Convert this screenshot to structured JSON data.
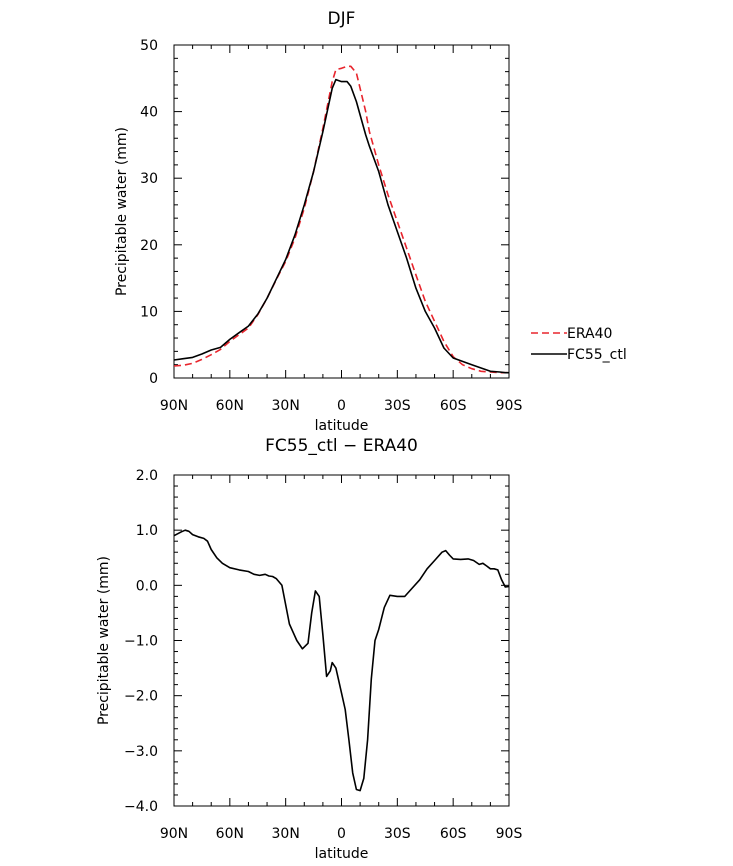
{
  "chart_data": [
    {
      "type": "line",
      "title": "DJF",
      "xlabel": "latitude",
      "ylabel": "Precipitable water (mm)",
      "xlim": [
        -90,
        90
      ],
      "ylim": [
        0,
        50
      ],
      "x_ticks": [
        -90,
        -60,
        -30,
        0,
        30,
        60,
        90
      ],
      "x_tick_labels": [
        "90N",
        "60N",
        "30N",
        "0",
        "30S",
        "60S",
        "90S"
      ],
      "y_ticks": [
        0,
        10,
        20,
        30,
        40,
        50
      ],
      "y_tick_labels": [
        "0",
        "10",
        "20",
        "30",
        "40",
        "50"
      ],
      "legend_position": "right",
      "series": [
        {
          "name": "ERA40",
          "color": "#e8252d",
          "dash": "dashed",
          "x": [
            -90,
            -85,
            -80,
            -75,
            -70,
            -65,
            -60,
            -55,
            -50,
            -45,
            -40,
            -35,
            -30,
            -25,
            -20,
            -15,
            -10,
            -5,
            -3,
            0,
            3,
            5,
            8,
            10,
            13,
            15,
            20,
            25,
            30,
            35,
            40,
            45,
            50,
            55,
            60,
            65,
            70,
            75,
            80,
            85,
            88,
            90
          ],
          "y": [
            1.8,
            1.9,
            2.2,
            2.8,
            3.5,
            4.3,
            5.5,
            6.5,
            7.5,
            9.5,
            12.0,
            14.8,
            17.5,
            21.0,
            25.5,
            31.0,
            37.5,
            44.5,
            46.3,
            46.5,
            46.8,
            46.8,
            45.8,
            43.5,
            40.0,
            37.0,
            32.0,
            27.5,
            23.5,
            19.5,
            15.5,
            11.5,
            8.5,
            5.5,
            3.2,
            2.0,
            1.4,
            1.0,
            0.9,
            0.8,
            0.8,
            0.8
          ]
        },
        {
          "name": "FC55_ctl",
          "color": "#000000",
          "dash": "solid",
          "x": [
            -90,
            -85,
            -80,
            -75,
            -70,
            -65,
            -60,
            -55,
            -50,
            -45,
            -40,
            -35,
            -30,
            -25,
            -20,
            -15,
            -10,
            -5,
            -3,
            0,
            3,
            5,
            8,
            10,
            13,
            15,
            20,
            25,
            30,
            35,
            40,
            45,
            50,
            55,
            60,
            65,
            70,
            75,
            80,
            85,
            88,
            90
          ],
          "y": [
            2.7,
            2.9,
            3.1,
            3.6,
            4.2,
            4.6,
            5.8,
            6.8,
            7.8,
            9.6,
            12.0,
            14.9,
            17.8,
            21.5,
            26.0,
            31.0,
            37.0,
            43.5,
            44.8,
            44.5,
            44.5,
            43.8,
            41.5,
            39.5,
            36.5,
            34.8,
            31.0,
            26.0,
            22.0,
            18.0,
            13.5,
            10.0,
            7.5,
            4.5,
            3.0,
            2.5,
            2.0,
            1.5,
            1.0,
            0.9,
            0.8,
            0.8
          ]
        }
      ]
    },
    {
      "type": "line",
      "title": "FC55_ctl − ERA40",
      "xlabel": "latitude",
      "ylabel": "Precipitable water (mm)",
      "xlim": [
        -90,
        90
      ],
      "ylim": [
        -4.0,
        2.0
      ],
      "x_ticks": [
        -90,
        -60,
        -30,
        0,
        30,
        60,
        90
      ],
      "x_tick_labels": [
        "90N",
        "60N",
        "30N",
        "0",
        "30S",
        "60S",
        "90S"
      ],
      "y_ticks": [
        -4,
        -3,
        -2,
        -1,
        0,
        1,
        2
      ],
      "y_tick_labels": [
        "−4.0",
        "−3.0",
        "−2.0",
        "−1.0",
        "0.0",
        "1.0",
        "2.0"
      ],
      "series": [
        {
          "color": "#000000",
          "dash": "solid",
          "x": [
            -90,
            -86,
            -84,
            -82,
            -80,
            -77,
            -74,
            -72,
            -70,
            -67,
            -64,
            -60,
            -55,
            -50,
            -47,
            -44,
            -41,
            -39,
            -37,
            -35,
            -32,
            -28,
            -24,
            -21,
            -18,
            -16,
            -14,
            -12,
            -10,
            -8,
            -6,
            -5,
            -3,
            0,
            2,
            4,
            6,
            8,
            10,
            12,
            14,
            16,
            18,
            20,
            23,
            26,
            30,
            34,
            38,
            42,
            46,
            50,
            54,
            56,
            58,
            60,
            64,
            68,
            71,
            74,
            76,
            78,
            80,
            82,
            84,
            86,
            88,
            90
          ],
          "y": [
            0.9,
            0.97,
            1.0,
            0.98,
            0.92,
            0.88,
            0.85,
            0.8,
            0.65,
            0.5,
            0.4,
            0.32,
            0.28,
            0.25,
            0.2,
            0.18,
            0.2,
            0.17,
            0.16,
            0.12,
            0.0,
            -0.7,
            -1.0,
            -1.15,
            -1.05,
            -0.5,
            -0.1,
            -0.2,
            -0.9,
            -1.65,
            -1.55,
            -1.4,
            -1.5,
            -1.95,
            -2.25,
            -2.8,
            -3.4,
            -3.7,
            -3.72,
            -3.5,
            -2.8,
            -1.7,
            -1.0,
            -0.8,
            -0.4,
            -0.18,
            -0.2,
            -0.2,
            -0.05,
            0.1,
            0.3,
            0.45,
            0.6,
            0.63,
            0.55,
            0.48,
            0.47,
            0.48,
            0.45,
            0.38,
            0.4,
            0.35,
            0.3,
            0.3,
            0.28,
            0.1,
            -0.03,
            -0.02
          ]
        }
      ]
    }
  ]
}
